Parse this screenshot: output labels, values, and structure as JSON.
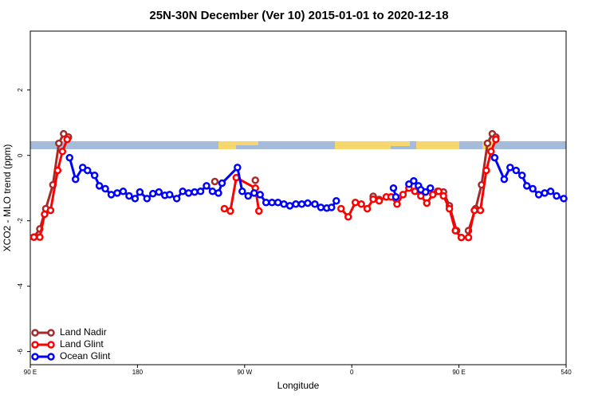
{
  "chart_data": {
    "type": "line",
    "title": "25N-30N December (Ver 10)   2015-01-01 to 2020-12-18",
    "x_label": "Longitude",
    "y_label": "XCO2 - MLO trend (ppm)",
    "xlim": [
      90,
      540
    ],
    "ylim": [
      -6.4,
      3.8
    ],
    "xticks": [
      {
        "value": 90,
        "label": "90 E"
      },
      180,
      {
        "value": 270,
        "label": "90 W"
      },
      {
        "value": 360,
        "label": "0"
      },
      {
        "value": 450,
        "label": "90 E"
      },
      540
    ],
    "yticks": [
      -6,
      -4,
      -2,
      0,
      2
    ],
    "legend": "bottom-left",
    "series": [
      {
        "name": "Land Nadir",
        "color": "#a52a2a",
        "x": [
          93,
          98,
          103,
          109,
          114,
          118,
          122,
          null,
          245,
          null,
          279,
          null,
          378,
          383,
          null,
          432,
          437,
          442,
          448,
          null,
          458,
          464,
          469,
          474,
          478,
          481
        ],
        "values": [
          -2.5,
          -2.25,
          -1.63,
          -0.9,
          0.37,
          0.66,
          0.56,
          null,
          -0.8,
          null,
          -0.76,
          null,
          -1.25,
          -1.35,
          null,
          -1.1,
          -1.12,
          -1.54,
          -2.3,
          null,
          -2.3,
          -1.63,
          -0.9,
          0.37,
          0.66,
          0.56
        ]
      },
      {
        "name": "Land Glint",
        "color": "#ff0000",
        "x": [
          93,
          98,
          102,
          107,
          113,
          117,
          121,
          null,
          253,
          258,
          263,
          279,
          282,
          null,
          351,
          357,
          363,
          368,
          373,
          378,
          383,
          389,
          393,
          398,
          403,
          408,
          413,
          418,
          423,
          428,
          433,
          437,
          442,
          447,
          452,
          458,
          463,
          468,
          473,
          477,
          481
        ],
        "values": [
          -2.5,
          -2.5,
          -1.8,
          -1.68,
          -0.46,
          0.12,
          0.49,
          null,
          -1.63,
          -1.7,
          -0.68,
          -1.0,
          -1.7,
          null,
          -1.63,
          -1.88,
          -1.44,
          -1.49,
          -1.63,
          -1.34,
          -1.39,
          -1.27,
          -1.27,
          -1.49,
          -1.2,
          -1.0,
          -1.1,
          -1.24,
          -1.46,
          -1.2,
          -1.1,
          -1.24,
          -1.63,
          -2.3,
          -2.51,
          -2.51,
          -1.68,
          -1.68,
          -0.46,
          0.12,
          0.49
        ]
      },
      {
        "name": "Ocean Glint",
        "color": "#0000ff",
        "x": [
          123,
          128,
          134,
          138,
          144,
          148,
          153,
          158,
          163,
          168,
          173,
          178,
          182,
          188,
          193,
          198,
          203,
          207,
          213,
          218,
          223,
          228,
          233,
          238,
          243,
          248,
          251,
          264,
          268,
          273,
          278,
          283,
          288,
          293,
          298,
          303,
          308,
          313,
          318,
          323,
          329,
          334,
          339,
          343,
          347,
          null,
          395,
          397,
          null,
          408,
          412,
          416,
          418,
          422,
          426,
          null,
          480,
          488,
          493,
          498,
          503,
          507,
          512,
          517,
          522,
          527,
          532,
          538
        ],
        "values": [
          -0.07,
          -0.73,
          -0.37,
          -0.46,
          -0.61,
          -0.93,
          -1.02,
          -1.2,
          -1.15,
          -1.1,
          -1.24,
          -1.32,
          -1.12,
          -1.32,
          -1.17,
          -1.12,
          -1.22,
          -1.2,
          -1.32,
          -1.1,
          -1.15,
          -1.12,
          -1.1,
          -0.93,
          -1.1,
          -1.15,
          -0.85,
          -0.37,
          -1.1,
          -1.24,
          -1.15,
          -1.2,
          -1.44,
          -1.44,
          -1.44,
          -1.49,
          -1.54,
          -1.49,
          -1.49,
          -1.46,
          -1.49,
          -1.59,
          -1.61,
          -1.59,
          -1.39,
          null,
          -1.0,
          -1.27,
          null,
          -0.88,
          -0.78,
          -0.93,
          -1.05,
          -1.12,
          -1.0,
          null,
          -0.07,
          -0.73,
          -0.37,
          -0.46,
          -0.61,
          -0.93,
          -1.02,
          -1.2,
          -1.15,
          -1.1,
          -1.24,
          -1.32
        ]
      }
    ]
  }
}
